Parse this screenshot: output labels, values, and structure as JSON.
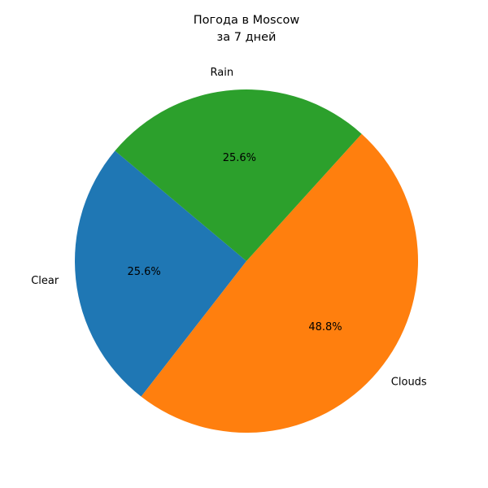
{
  "chart_data": {
    "type": "pie",
    "title_lines": [
      "Погода в Moscow",
      "за 7 дней"
    ],
    "categories": [
      "Clear",
      "Clouds",
      "Rain"
    ],
    "values": [
      25.6,
      48.8,
      25.6
    ],
    "value_labels": [
      "25.6%",
      "48.8%",
      "25.6%"
    ],
    "colors": [
      "#1f77b4",
      "#ff7f0e",
      "#2ca02c"
    ],
    "start_angle_deg": 140,
    "direction": "counterclockwise",
    "legend": "none"
  }
}
